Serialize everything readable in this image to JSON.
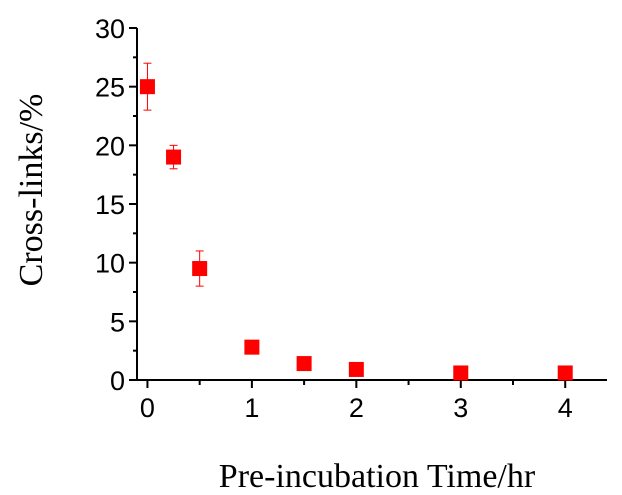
{
  "chart_data": {
    "type": "scatter",
    "title": "",
    "xlabel": "Pre-incubation Time/hr",
    "ylabel": "Cross-links/%",
    "xlim": [
      -0.1,
      4.4
    ],
    "ylim": [
      0,
      30
    ],
    "x_ticks": [
      0,
      1,
      2,
      3,
      4
    ],
    "y_ticks": [
      0,
      5,
      10,
      15,
      20,
      25,
      30
    ],
    "grid": false,
    "legend": "none",
    "marker": "square",
    "color": "#ff0000",
    "series": [
      {
        "points": [
          {
            "x": 0,
            "y": 25.0,
            "err": 2.0
          },
          {
            "x": 0.25,
            "y": 19.0,
            "err": 1.0
          },
          {
            "x": 0.5,
            "y": 9.5,
            "err": 1.5
          },
          {
            "x": 1,
            "y": 2.8,
            "err": 0
          },
          {
            "x": 1.5,
            "y": 1.4,
            "err": 0
          },
          {
            "x": 2,
            "y": 0.9,
            "err": 0
          },
          {
            "x": 3,
            "y": 0.6,
            "err": 0
          },
          {
            "x": 4,
            "y": 0.6,
            "err": 0
          }
        ]
      }
    ]
  }
}
